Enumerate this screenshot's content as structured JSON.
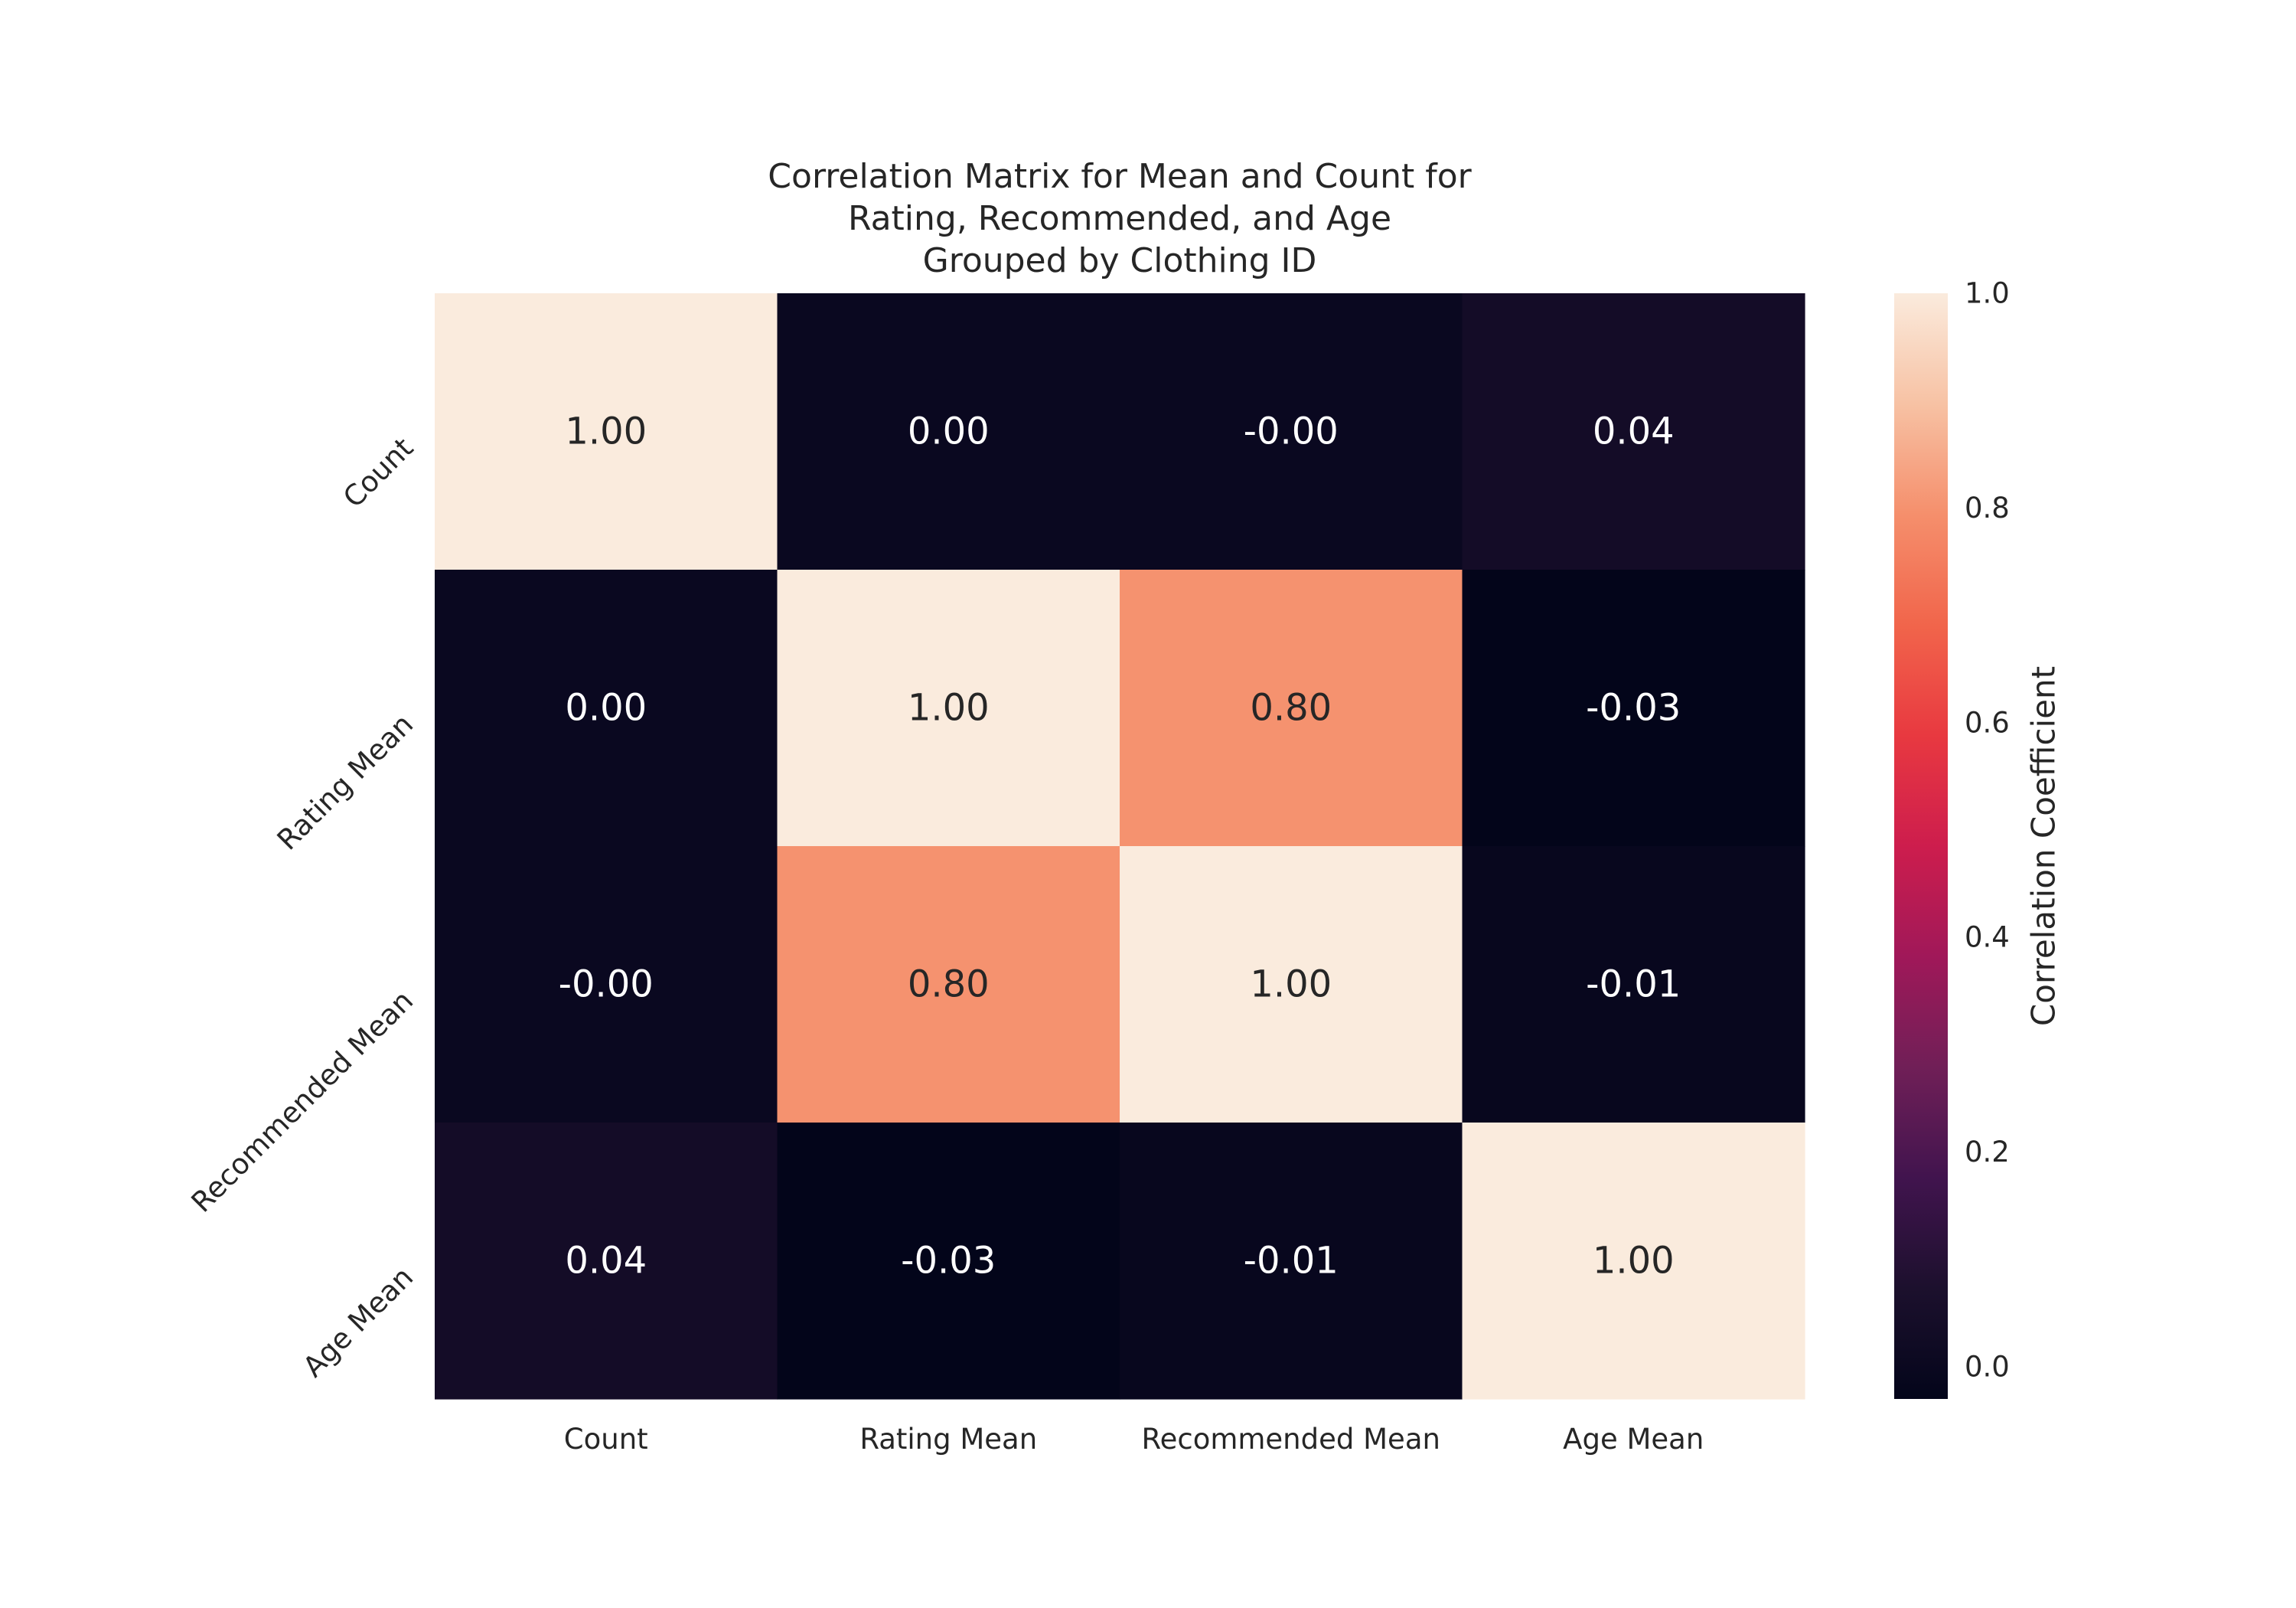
{
  "chart_data": {
    "type": "heatmap",
    "title": [
      "Correlation Matrix for Mean and Count for",
      "Rating, Recommended, and Age",
      "Grouped by Clothing ID"
    ],
    "x_categories": [
      "Count",
      "Rating Mean",
      "Recommended Mean",
      "Age Mean"
    ],
    "y_categories": [
      "Count",
      "Rating Mean",
      "Recommended Mean",
      "Age Mean"
    ],
    "values": [
      [
        1.0,
        0.0,
        -0.0,
        0.04
      ],
      [
        0.0,
        1.0,
        0.8,
        -0.03
      ],
      [
        -0.0,
        0.8,
        1.0,
        -0.01
      ],
      [
        0.04,
        -0.03,
        -0.01,
        1.0
      ]
    ],
    "cell_labels": [
      [
        "1.00",
        "0.00",
        "-0.00",
        "0.04"
      ],
      [
        "0.00",
        "1.00",
        "0.80",
        "-0.03"
      ],
      [
        "-0.00",
        "0.80",
        "1.00",
        "-0.01"
      ],
      [
        "0.04",
        "-0.03",
        "-0.01",
        "1.00"
      ]
    ],
    "colorbar": {
      "label": "Correlation Coefficient",
      "range": [
        -0.03,
        1.0
      ],
      "ticks": [
        0.0,
        0.2,
        0.4,
        0.6,
        0.8,
        1.0
      ],
      "tick_labels": [
        "0.0",
        "0.2",
        "0.4",
        "0.6",
        "0.8",
        "1.0"
      ],
      "colormap": "rocket"
    },
    "grid": false
  }
}
